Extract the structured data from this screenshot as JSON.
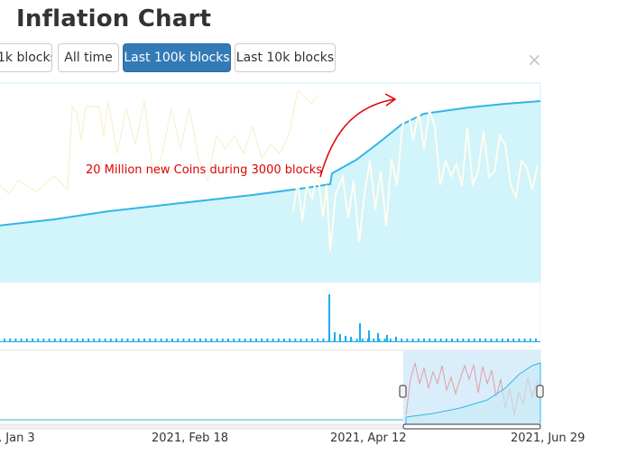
{
  "page": {
    "title": "Inflation Chart"
  },
  "range_buttons": [
    {
      "label": "1k blocks",
      "active": false
    },
    {
      "label": "All time",
      "active": false
    },
    {
      "label": "Last 100k blocks",
      "active": true
    },
    {
      "label": "Last 10k blocks",
      "active": false
    }
  ],
  "close_label": "×",
  "annotation": {
    "text": "20 Million new Coins during 3000 blocks",
    "color": "#e00000"
  },
  "navigator_xaxis": ", Jan 3|2021, Feb 18|2021, Apr 12|2021, Jun 29",
  "xaxis_labels": [
    ", Jan 3",
    "2021, Feb 18",
    "2021, Apr 12",
    "2021, Jun 29"
  ],
  "colors": {
    "supply_line": "#33b5e5",
    "supply_fill": "#d2f4fb",
    "inflation_line": "#fffef4",
    "block_reward": "#1eaaf1",
    "navigator_mask": "#d6ebfa",
    "navigator_series": "#e0a0a0",
    "active_button": "#337ab7"
  },
  "chart_data": {
    "type": "area",
    "series": [],
    "note_series": [
      "supply",
      "inflation",
      "block_reward"
    ]
  }
}
